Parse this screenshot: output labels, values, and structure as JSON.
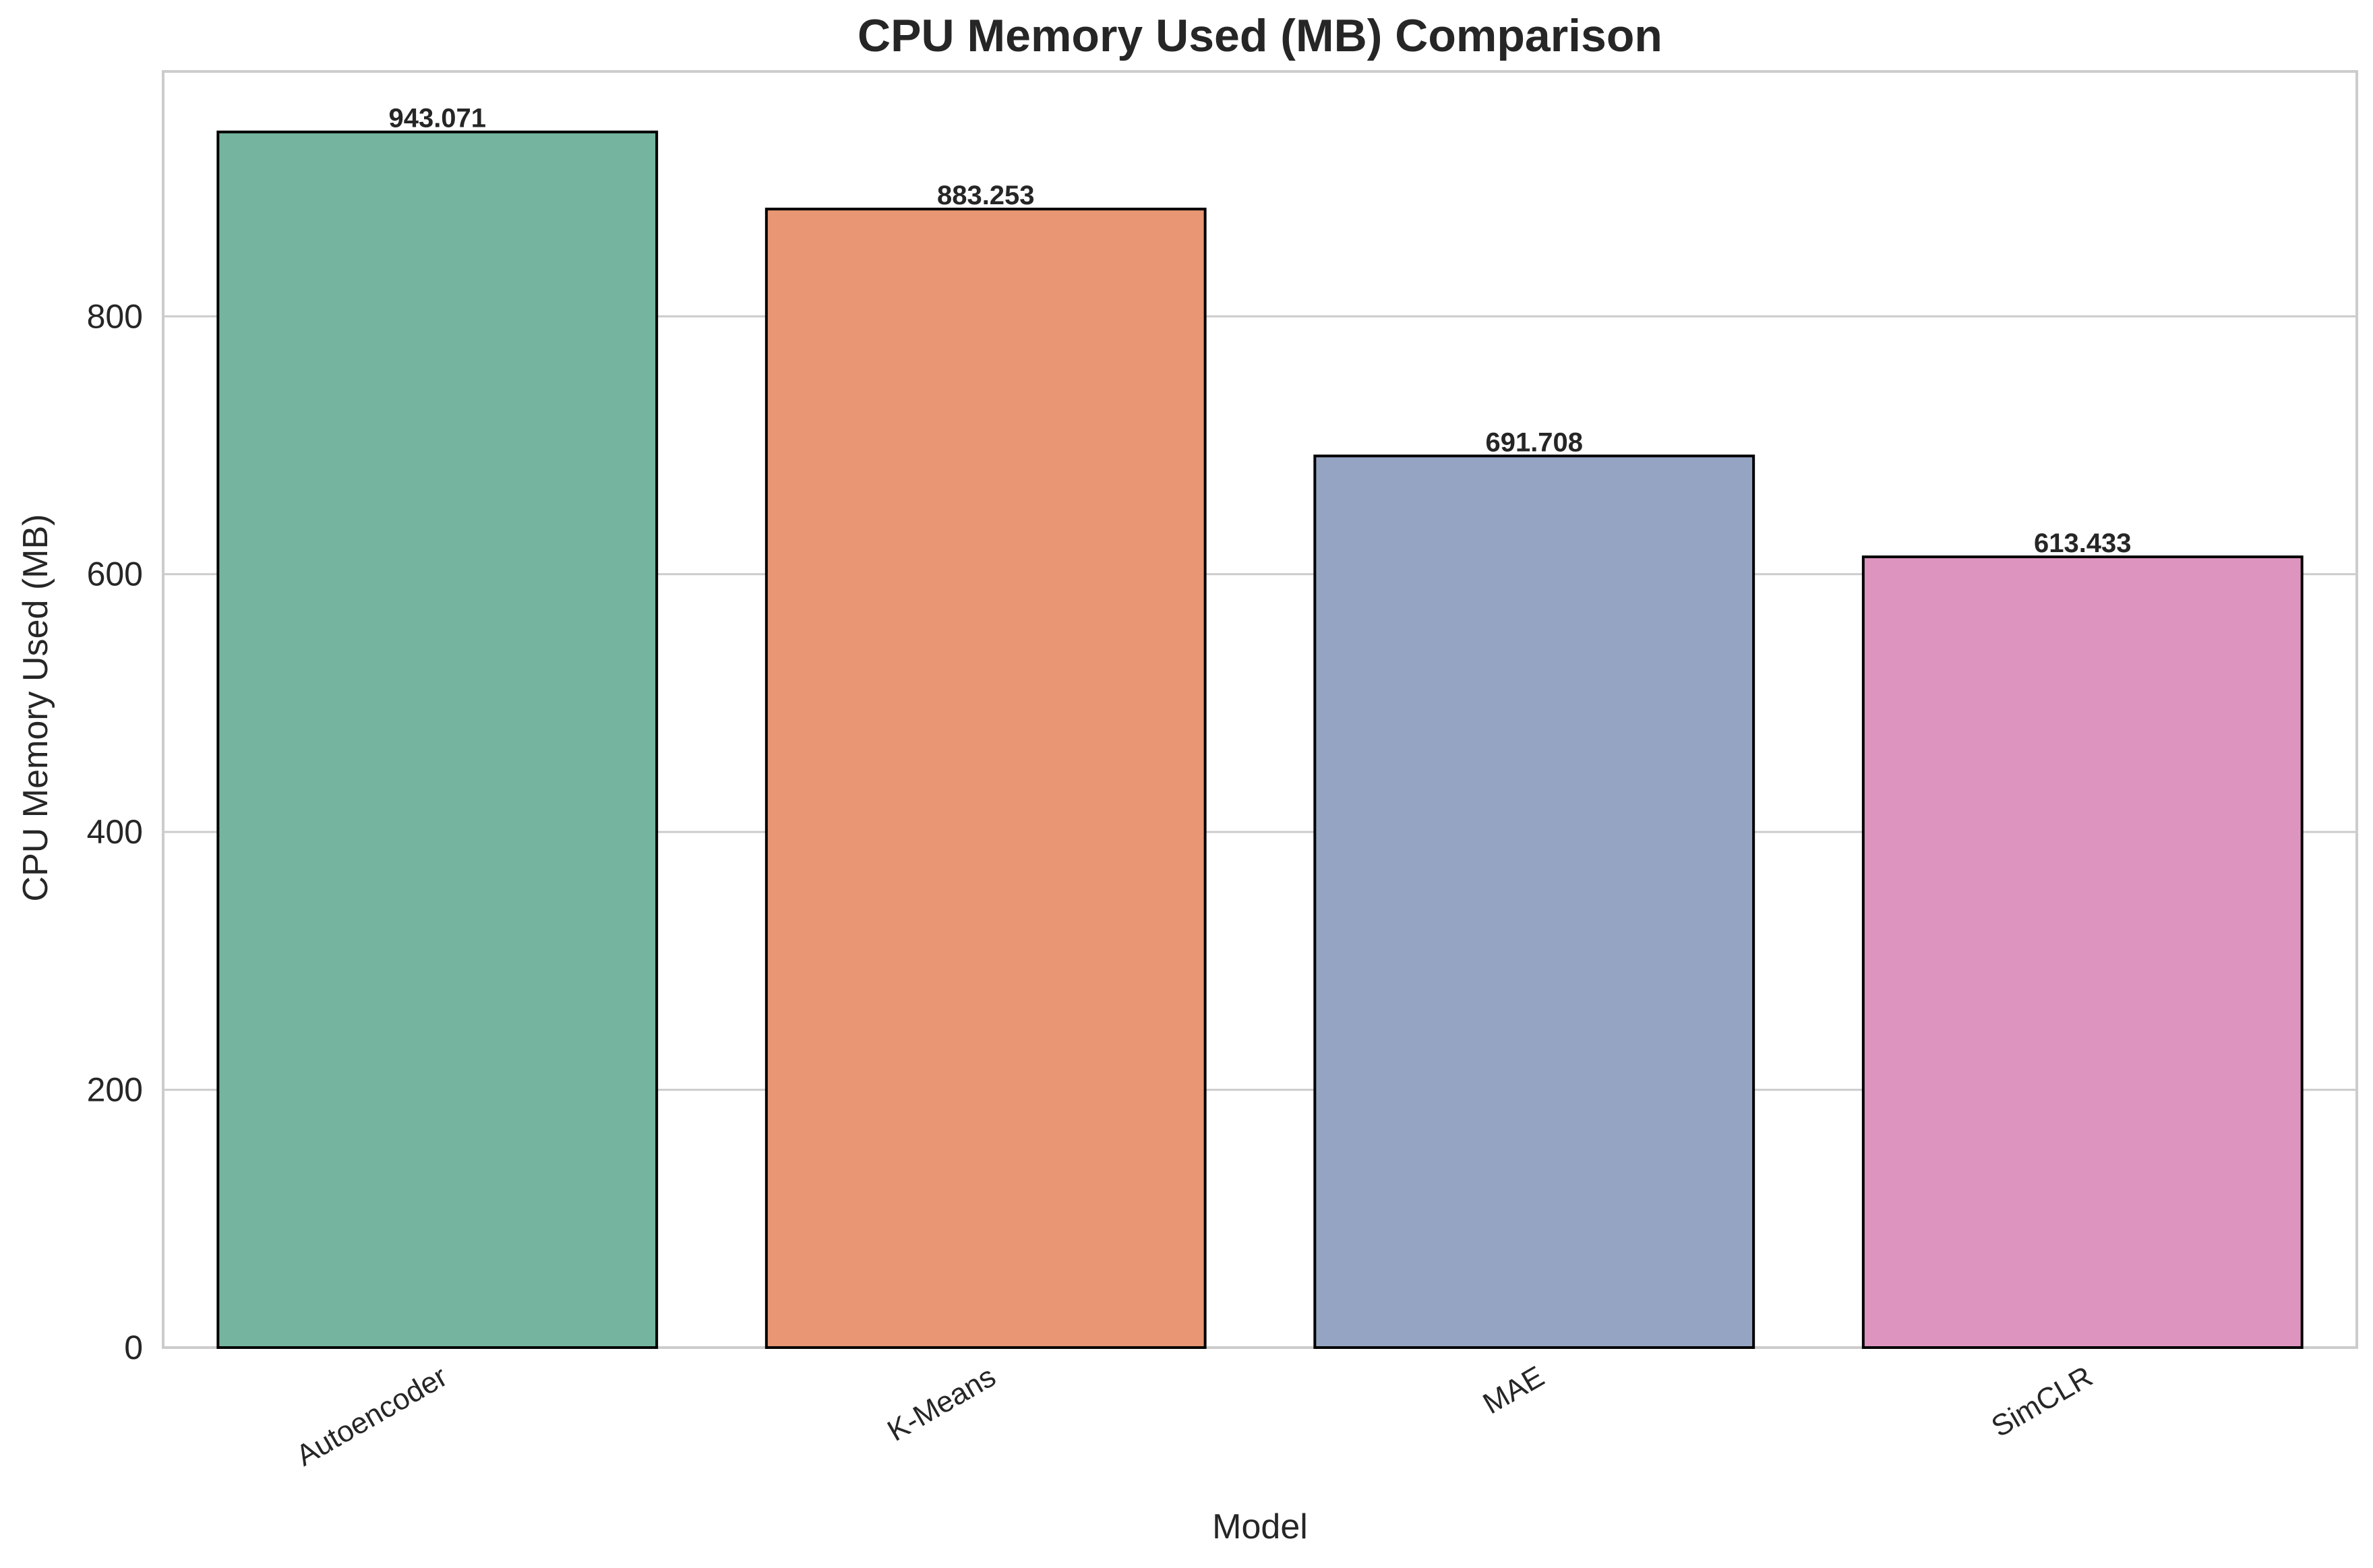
{
  "chart_data": {
    "type": "bar",
    "title": "CPU Memory Used (MB) Comparison",
    "xlabel": "Model",
    "ylabel": "CPU Memory Used (MB)",
    "categories": [
      "Autoencoder",
      "K-Means",
      "MAE",
      "SimCLR"
    ],
    "values": [
      943.071,
      883.253,
      691.708,
      613.433
    ],
    "value_labels": [
      "943.071",
      "883.253",
      "691.708",
      "613.433"
    ],
    "colors": [
      "#75b5a0",
      "#e89674",
      "#95a4c3",
      "#dd95bf"
    ],
    "ylim": [
      0,
      990
    ],
    "yticks": [
      0,
      200,
      400,
      600,
      800
    ],
    "ytick_labels": [
      "0",
      "200",
      "400",
      "600",
      "800"
    ],
    "grid": true,
    "legend": false
  }
}
